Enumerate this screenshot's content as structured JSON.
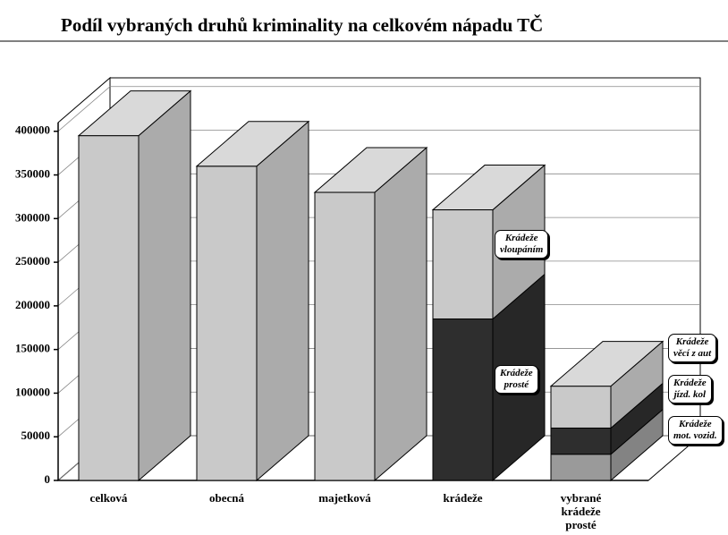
{
  "chart_data": {
    "type": "bar",
    "stacked": true,
    "title": "Podíl vybraných druhů kriminality na celkovém nápadu TČ",
    "categories": [
      "celková",
      "obecná",
      "majetková",
      "krádeže",
      "vybrané\nkrádeže\nprosté"
    ],
    "series": [
      {
        "color": "#c9c9c9",
        "values": [
          395000,
          360000,
          330000,
          null,
          null
        ]
      },
      {
        "name": "Krádeže\nprosté",
        "color": "#2e2e2e",
        "values": [
          null,
          null,
          null,
          185000,
          null
        ]
      },
      {
        "name": "Krádeže\nvloupáním",
        "color": "#c9c9c9",
        "values": [
          null,
          null,
          null,
          125000,
          null
        ]
      },
      {
        "name": "Krádeže\nmot. vozid.",
        "color": "#9a9a9a",
        "values": [
          null,
          null,
          null,
          null,
          30000
        ]
      },
      {
        "name": "Krádeže\njízd. kol",
        "color": "#2e2e2e",
        "values": [
          null,
          null,
          null,
          null,
          30000
        ]
      },
      {
        "name": "Krádeže\nvěcí z aut",
        "color": "#c9c9c9",
        "values": [
          null,
          null,
          null,
          null,
          48000
        ]
      }
    ],
    "ylim": [
      0,
      410000
    ],
    "yticks": [
      0,
      50000,
      100000,
      150000,
      200000,
      250000,
      300000,
      350000,
      400000
    ],
    "grid": true
  }
}
